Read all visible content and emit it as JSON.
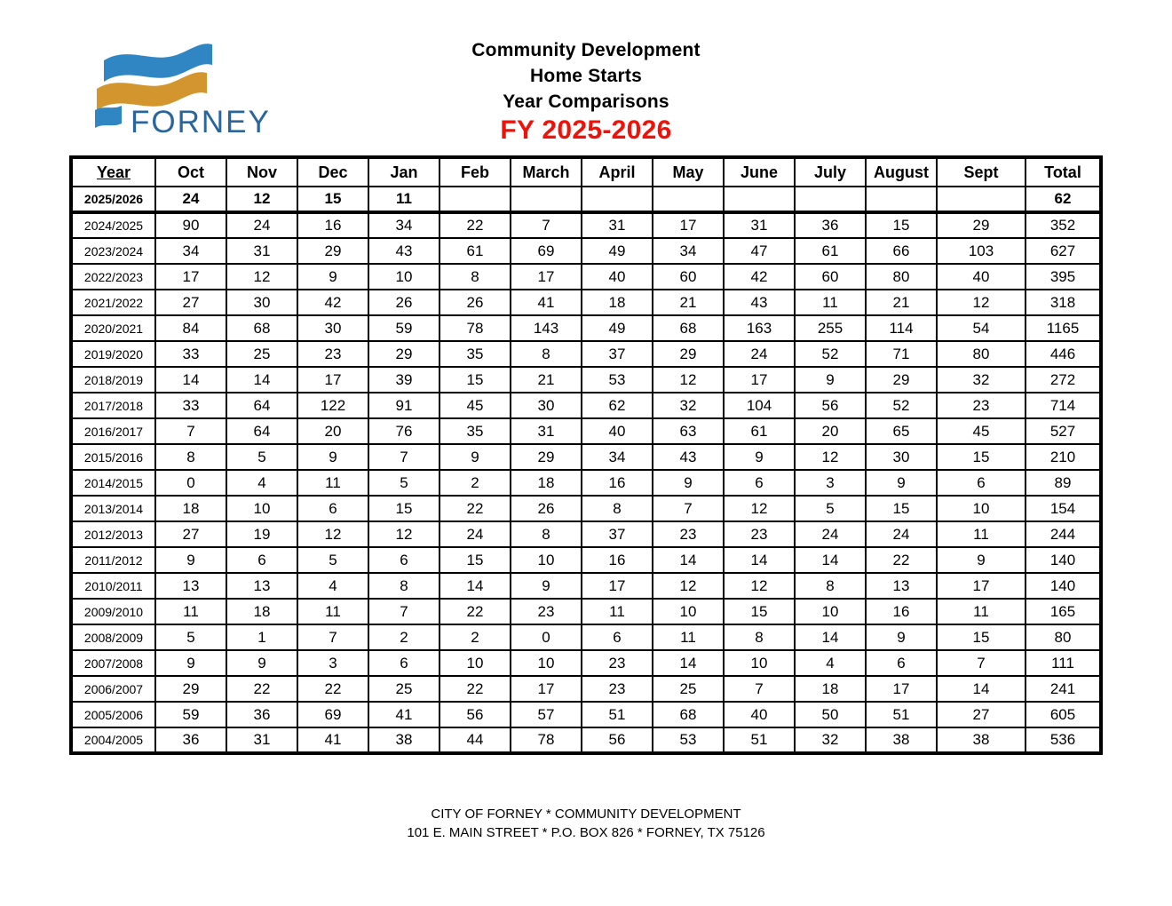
{
  "logo": {
    "text": "FORNEY",
    "colors": {
      "blue": "#2f86c3",
      "gold": "#d3952d",
      "text": "#2a659c"
    }
  },
  "title": {
    "line1": "Community Development",
    "line2": "Home Starts",
    "line3": "Year Comparisons",
    "fiscal_year": "FY 2025-2026",
    "fiscal_year_color": "#f01109"
  },
  "table": {
    "columns": [
      "Year",
      "Oct",
      "Nov",
      "Dec",
      "Jan",
      "Feb",
      "March",
      "April",
      "May",
      "June",
      "July",
      "August",
      "Sept",
      "Total"
    ],
    "rows": [
      {
        "year": "2025/2026",
        "bold": true,
        "values": [
          "24",
          "12",
          "15",
          "11",
          "",
          "",
          "",
          "",
          "",
          "",
          "",
          ""
        ],
        "total": "62"
      },
      {
        "year": "2024/2025",
        "values": [
          "90",
          "24",
          "16",
          "34",
          "22",
          "7",
          "31",
          "17",
          "31",
          "36",
          "15",
          "29"
        ],
        "total": "352"
      },
      {
        "year": "2023/2024",
        "values": [
          "34",
          "31",
          "29",
          "43",
          "61",
          "69",
          "49",
          "34",
          "47",
          "61",
          "66",
          "103"
        ],
        "total": "627"
      },
      {
        "year": "2022/2023",
        "values": [
          "17",
          "12",
          "9",
          "10",
          "8",
          "17",
          "40",
          "60",
          "42",
          "60",
          "80",
          "40"
        ],
        "total": "395"
      },
      {
        "year": "2021/2022",
        "values": [
          "27",
          "30",
          "42",
          "26",
          "26",
          "41",
          "18",
          "21",
          "43",
          "11",
          "21",
          "12"
        ],
        "total": "318"
      },
      {
        "year": "2020/2021",
        "values": [
          "84",
          "68",
          "30",
          "59",
          "78",
          "143",
          "49",
          "68",
          "163",
          "255",
          "114",
          "54"
        ],
        "total": "1165"
      },
      {
        "year": "2019/2020",
        "values": [
          "33",
          "25",
          "23",
          "29",
          "35",
          "8",
          "37",
          "29",
          "24",
          "52",
          "71",
          "80"
        ],
        "total": "446"
      },
      {
        "year": "2018/2019",
        "values": [
          "14",
          "14",
          "17",
          "39",
          "15",
          "21",
          "53",
          "12",
          "17",
          "9",
          "29",
          "32"
        ],
        "total": "272"
      },
      {
        "year": "2017/2018",
        "values": [
          "33",
          "64",
          "122",
          "91",
          "45",
          "30",
          "62",
          "32",
          "104",
          "56",
          "52",
          "23"
        ],
        "total": "714"
      },
      {
        "year": "2016/2017",
        "values": [
          "7",
          "64",
          "20",
          "76",
          "35",
          "31",
          "40",
          "63",
          "61",
          "20",
          "65",
          "45"
        ],
        "total": "527"
      },
      {
        "year": "2015/2016",
        "values": [
          "8",
          "5",
          "9",
          "7",
          "9",
          "29",
          "34",
          "43",
          "9",
          "12",
          "30",
          "15"
        ],
        "total": "210"
      },
      {
        "year": "2014/2015",
        "values": [
          "0",
          "4",
          "11",
          "5",
          "2",
          "18",
          "16",
          "9",
          "6",
          "3",
          "9",
          "6"
        ],
        "total": "89"
      },
      {
        "year": "2013/2014",
        "values": [
          "18",
          "10",
          "6",
          "15",
          "22",
          "26",
          "8",
          "7",
          "12",
          "5",
          "15",
          "10"
        ],
        "total": "154"
      },
      {
        "year": "2012/2013",
        "values": [
          "27",
          "19",
          "12",
          "12",
          "24",
          "8",
          "37",
          "23",
          "23",
          "24",
          "24",
          "11"
        ],
        "total": "244"
      },
      {
        "year": "2011/2012",
        "values": [
          "9",
          "6",
          "5",
          "6",
          "15",
          "10",
          "16",
          "14",
          "14",
          "14",
          "22",
          "9"
        ],
        "total": "140"
      },
      {
        "year": "2010/2011",
        "values": [
          "13",
          "13",
          "4",
          "8",
          "14",
          "9",
          "17",
          "12",
          "12",
          "8",
          "13",
          "17"
        ],
        "total": "140"
      },
      {
        "year": "2009/2010",
        "values": [
          "11",
          "18",
          "11",
          "7",
          "22",
          "23",
          "11",
          "10",
          "15",
          "10",
          "16",
          "11"
        ],
        "total": "165"
      },
      {
        "year": "2008/2009",
        "values": [
          "5",
          "1",
          "7",
          "2",
          "2",
          "0",
          "6",
          "11",
          "8",
          "14",
          "9",
          "15"
        ],
        "total": "80"
      },
      {
        "year": "2007/2008",
        "values": [
          "9",
          "9",
          "3",
          "6",
          "10",
          "10",
          "23",
          "14",
          "10",
          "4",
          "6",
          "7"
        ],
        "total": "111"
      },
      {
        "year": "2006/2007",
        "values": [
          "29",
          "22",
          "22",
          "25",
          "22",
          "17",
          "23",
          "25",
          "7",
          "18",
          "17",
          "14"
        ],
        "total": "241"
      },
      {
        "year": "2005/2006",
        "values": [
          "59",
          "36",
          "69",
          "41",
          "56",
          "57",
          "51",
          "68",
          "40",
          "50",
          "51",
          "27"
        ],
        "total": "605"
      },
      {
        "year": "2004/2005",
        "values": [
          "36",
          "31",
          "41",
          "38",
          "44",
          "78",
          "56",
          "53",
          "51",
          "32",
          "38",
          "38"
        ],
        "total": "536"
      }
    ]
  },
  "footer": {
    "line1": "CITY OF FORNEY * COMMUNITY DEVELOPMENT",
    "line2": "101 E. MAIN STREET * P.O. BOX 826 * FORNEY, TX 75126"
  }
}
